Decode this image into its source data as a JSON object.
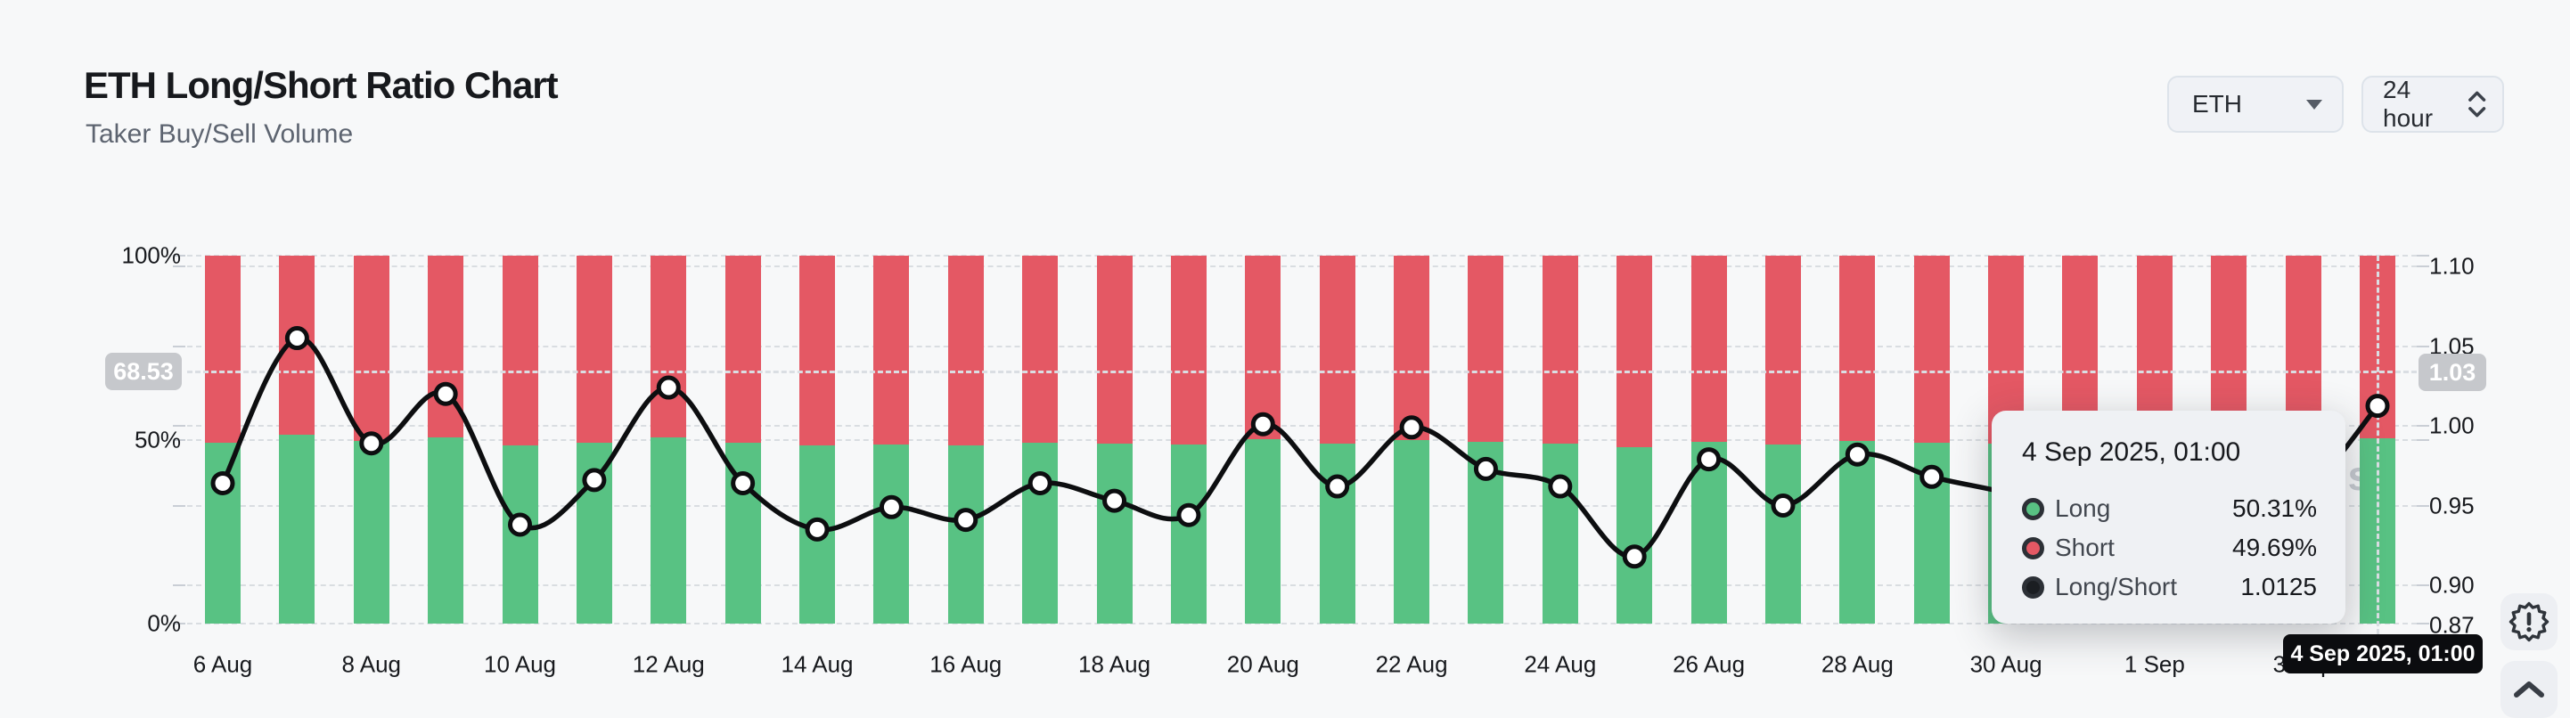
{
  "header": {
    "title": "ETH Long/Short Ratio Chart",
    "subtitle": "Taker Buy/Sell Volume"
  },
  "controls": {
    "symbol_select": {
      "value": "ETH"
    },
    "interval_select": {
      "value": "24 hour"
    }
  },
  "colors": {
    "long": "#58c283",
    "short": "#e45864",
    "line": "#0d0e10",
    "background": "#f7f8f9",
    "axis_badge_bg": "#c6c8cc",
    "date_badge_bg": "#0b0c0f",
    "tooltip_bg": "#eff1f4"
  },
  "chart_data": {
    "type": "bar",
    "subtype": "stacked-percent-bars-with-ratio-line",
    "categories": [
      "6 Aug",
      "7 Aug",
      "8 Aug",
      "9 Aug",
      "10 Aug",
      "11 Aug",
      "12 Aug",
      "13 Aug",
      "14 Aug",
      "15 Aug",
      "16 Aug",
      "17 Aug",
      "18 Aug",
      "19 Aug",
      "20 Aug",
      "21 Aug",
      "22 Aug",
      "23 Aug",
      "24 Aug",
      "25 Aug",
      "26 Aug",
      "27 Aug",
      "28 Aug",
      "29 Aug",
      "30 Aug",
      "31 Aug",
      "1 Sep",
      "2 Sep",
      "3 Sep",
      "4 Sep"
    ],
    "series": [
      {
        "name": "Long",
        "axis": "left",
        "unit": "%",
        "color": "#58c283",
        "values": [
          49.08,
          51.34,
          49.72,
          50.5,
          48.4,
          49.14,
          50.59,
          49.08,
          48.32,
          48.69,
          48.48,
          49.08,
          48.8,
          48.56,
          50.02,
          49.03,
          49.97,
          49.32,
          49.03,
          47.86,
          49.47,
          48.72,
          49.55,
          49.19,
          48.93,
          48.59,
          48.4,
          48.29,
          48.88,
          50.31
        ]
      },
      {
        "name": "Short",
        "axis": "left",
        "unit": "%",
        "color": "#e45864",
        "values": [
          50.92,
          48.66,
          50.28,
          49.5,
          51.6,
          50.86,
          49.41,
          50.92,
          51.68,
          51.31,
          51.52,
          50.92,
          51.2,
          51.44,
          49.98,
          50.97,
          50.03,
          50.68,
          50.97,
          52.14,
          50.53,
          51.28,
          50.45,
          50.81,
          51.07,
          51.41,
          51.6,
          51.71,
          51.12,
          49.69
        ]
      },
      {
        "name": "Long/Short",
        "axis": "right",
        "unit": "ratio",
        "color": "#0d0e10",
        "type": "line",
        "values": [
          0.964,
          1.055,
          0.989,
          1.02,
          0.938,
          0.966,
          1.024,
          0.964,
          0.935,
          0.949,
          0.941,
          0.964,
          0.953,
          0.944,
          1.001,
          0.962,
          0.999,
          0.973,
          0.962,
          0.918,
          0.979,
          0.95,
          0.982,
          0.968,
          0.958,
          0.945,
          0.938,
          0.934,
          0.956,
          1.0125
        ]
      }
    ],
    "x_tick_labels": [
      "6 Aug",
      "8 Aug",
      "10 Aug",
      "12 Aug",
      "14 Aug",
      "16 Aug",
      "18 Aug",
      "20 Aug",
      "22 Aug",
      "24 Aug",
      "26 Aug",
      "28 Aug",
      "30 Aug",
      "1 Sep",
      "3 Sep"
    ],
    "left_axis": {
      "range": [
        0,
        100
      ],
      "ticks": [
        {
          "label": "100%",
          "value": 100
        },
        {
          "label": "50%",
          "value": 50
        },
        {
          "label": "0%",
          "value": 0
        }
      ]
    },
    "right_axis": {
      "range": [
        0.876,
        1.107
      ],
      "ticks": [
        {
          "label": "1.10",
          "value": 1.1
        },
        {
          "label": "1.05",
          "value": 1.05
        },
        {
          "label": "1.00",
          "value": 1.0
        },
        {
          "label": "0.95",
          "value": 0.95
        },
        {
          "label": "0.90",
          "value": 0.9
        },
        {
          "label": "0.87",
          "value": 0.87,
          "label_only": true
        }
      ]
    },
    "grid": "dashed-horizontal",
    "legend_position": "none"
  },
  "crosshair": {
    "left_label": "68.53",
    "right_label": "1.03",
    "x_label": "4 Sep 2025, 01:00",
    "hover_index": 29
  },
  "tooltip": {
    "date": "4 Sep 2025, 01:00",
    "rows": [
      {
        "label": "Long",
        "value": "50.31%",
        "color": "#58c283"
      },
      {
        "label": "Short",
        "value": "49.69%",
        "color": "#e45864"
      },
      {
        "label": "Long/Short",
        "value": "1.0125",
        "color": "#1b1e22"
      }
    ]
  },
  "watermark": "coinglass",
  "floating_buttons": {
    "alert": "seal-alert-icon",
    "scroll_top": "chevron-up-icon"
  }
}
